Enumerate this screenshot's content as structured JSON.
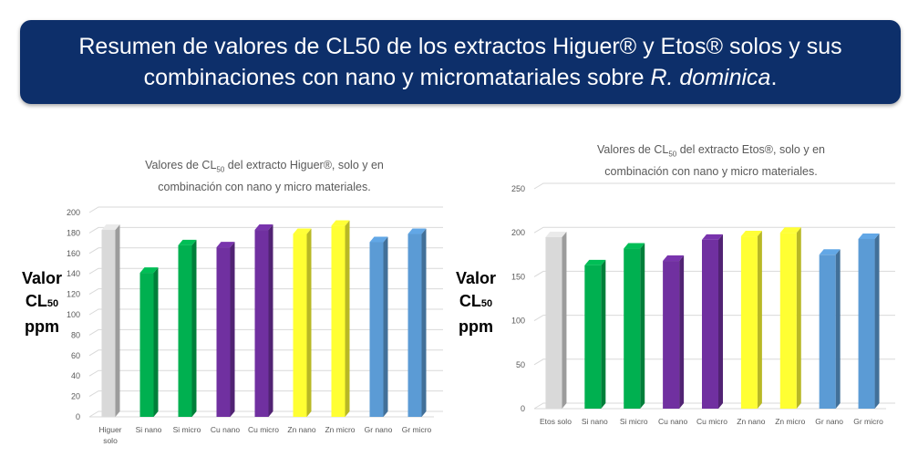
{
  "banner": {
    "line1": "Resumen de valores de CL50 de los extractos Higuer® y Etos® solos y sus",
    "line2_prefix": "combinaciones con nano y micromatariales sobre ",
    "line2_italic": "R. dominica",
    "line2_suffix": "."
  },
  "ylabel": {
    "line1": "Valor",
    "line2_main": "CL",
    "line2_sub": "50",
    "line3": "ppm"
  },
  "chart_data": [
    {
      "type": "bar",
      "title_prefix": "Valores de CL",
      "title_sub": "50",
      "title_rest": " del extracto Higuer®, solo y en",
      "title_line2": "combinación con nano y micro materiales.",
      "categories": [
        "Higuer solo",
        "Si nano",
        "Si micro",
        "Cu nano",
        "Cu micro",
        "Zn nano",
        "Zn micro",
        "Gr nano",
        "Gr micro"
      ],
      "values": [
        183,
        141,
        168,
        166,
        183,
        179,
        187,
        171,
        179
      ],
      "colors": [
        "#d9d9d9",
        "#00b050",
        "#00b050",
        "#7030a0",
        "#7030a0",
        "#ffff33",
        "#ffff33",
        "#5b9bd5",
        "#5b9bd5"
      ],
      "ylim": [
        0,
        200
      ],
      "yticks": [
        0,
        20,
        40,
        60,
        80,
        100,
        120,
        140,
        160,
        180,
        200
      ],
      "grid": true
    },
    {
      "type": "bar",
      "title_prefix": "Valores de CL",
      "title_sub": "50",
      "title_rest": " del extracto Etos®, solo y en",
      "title_line2": "combinación con nano y micro materiales.",
      "categories": [
        "Etos solo",
        "Si nano",
        "Si micro",
        "Cu nano",
        "Cu micro",
        "Zn nano",
        "Zn micro",
        "Gr nano",
        "Gr micro"
      ],
      "values": [
        195,
        163,
        182,
        168,
        192,
        196,
        200,
        175,
        193
      ],
      "colors": [
        "#d9d9d9",
        "#00b050",
        "#00b050",
        "#7030a0",
        "#7030a0",
        "#ffff33",
        "#ffff33",
        "#5b9bd5",
        "#5b9bd5"
      ],
      "ylim": [
        0,
        250
      ],
      "yticks": [
        0,
        50,
        100,
        150,
        200,
        250
      ],
      "grid": true
    }
  ]
}
